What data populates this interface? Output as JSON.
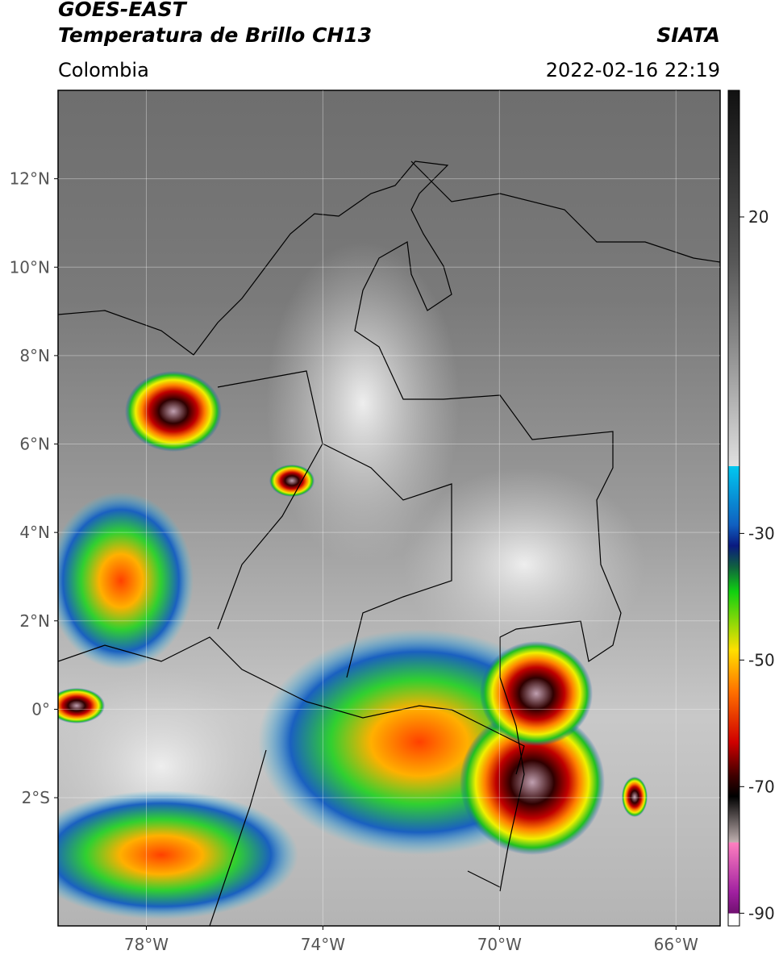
{
  "header": {
    "title": "GOES-EAST",
    "subtitle": "Temperatura de Brillo CH13",
    "source": "SIATA",
    "region": "Colombia",
    "datetime": "2022-02-16 22:19"
  },
  "map": {
    "xlim": [
      -80,
      -65
    ],
    "ylim": [
      -4.9,
      14
    ],
    "xticks": [
      {
        "value": -78,
        "label": "78°W"
      },
      {
        "value": -74,
        "label": "74°W"
      },
      {
        "value": -70,
        "label": "70°W"
      },
      {
        "value": -66,
        "label": "66°W"
      }
    ],
    "yticks": [
      {
        "value": 12,
        "label": "12°N"
      },
      {
        "value": 10,
        "label": "10°N"
      },
      {
        "value": 8,
        "label": "8°N"
      },
      {
        "value": 6,
        "label": "6°N"
      },
      {
        "value": 4,
        "label": "4°N"
      },
      {
        "value": 2,
        "label": "2°N"
      },
      {
        "value": 0,
        "label": "0°"
      },
      {
        "value": -2,
        "label": "2°S"
      }
    ],
    "grid": true
  },
  "colorbar": {
    "lim": [
      40,
      -92
    ],
    "ticks": [
      20,
      -30,
      -50,
      -70,
      -90
    ]
  }
}
